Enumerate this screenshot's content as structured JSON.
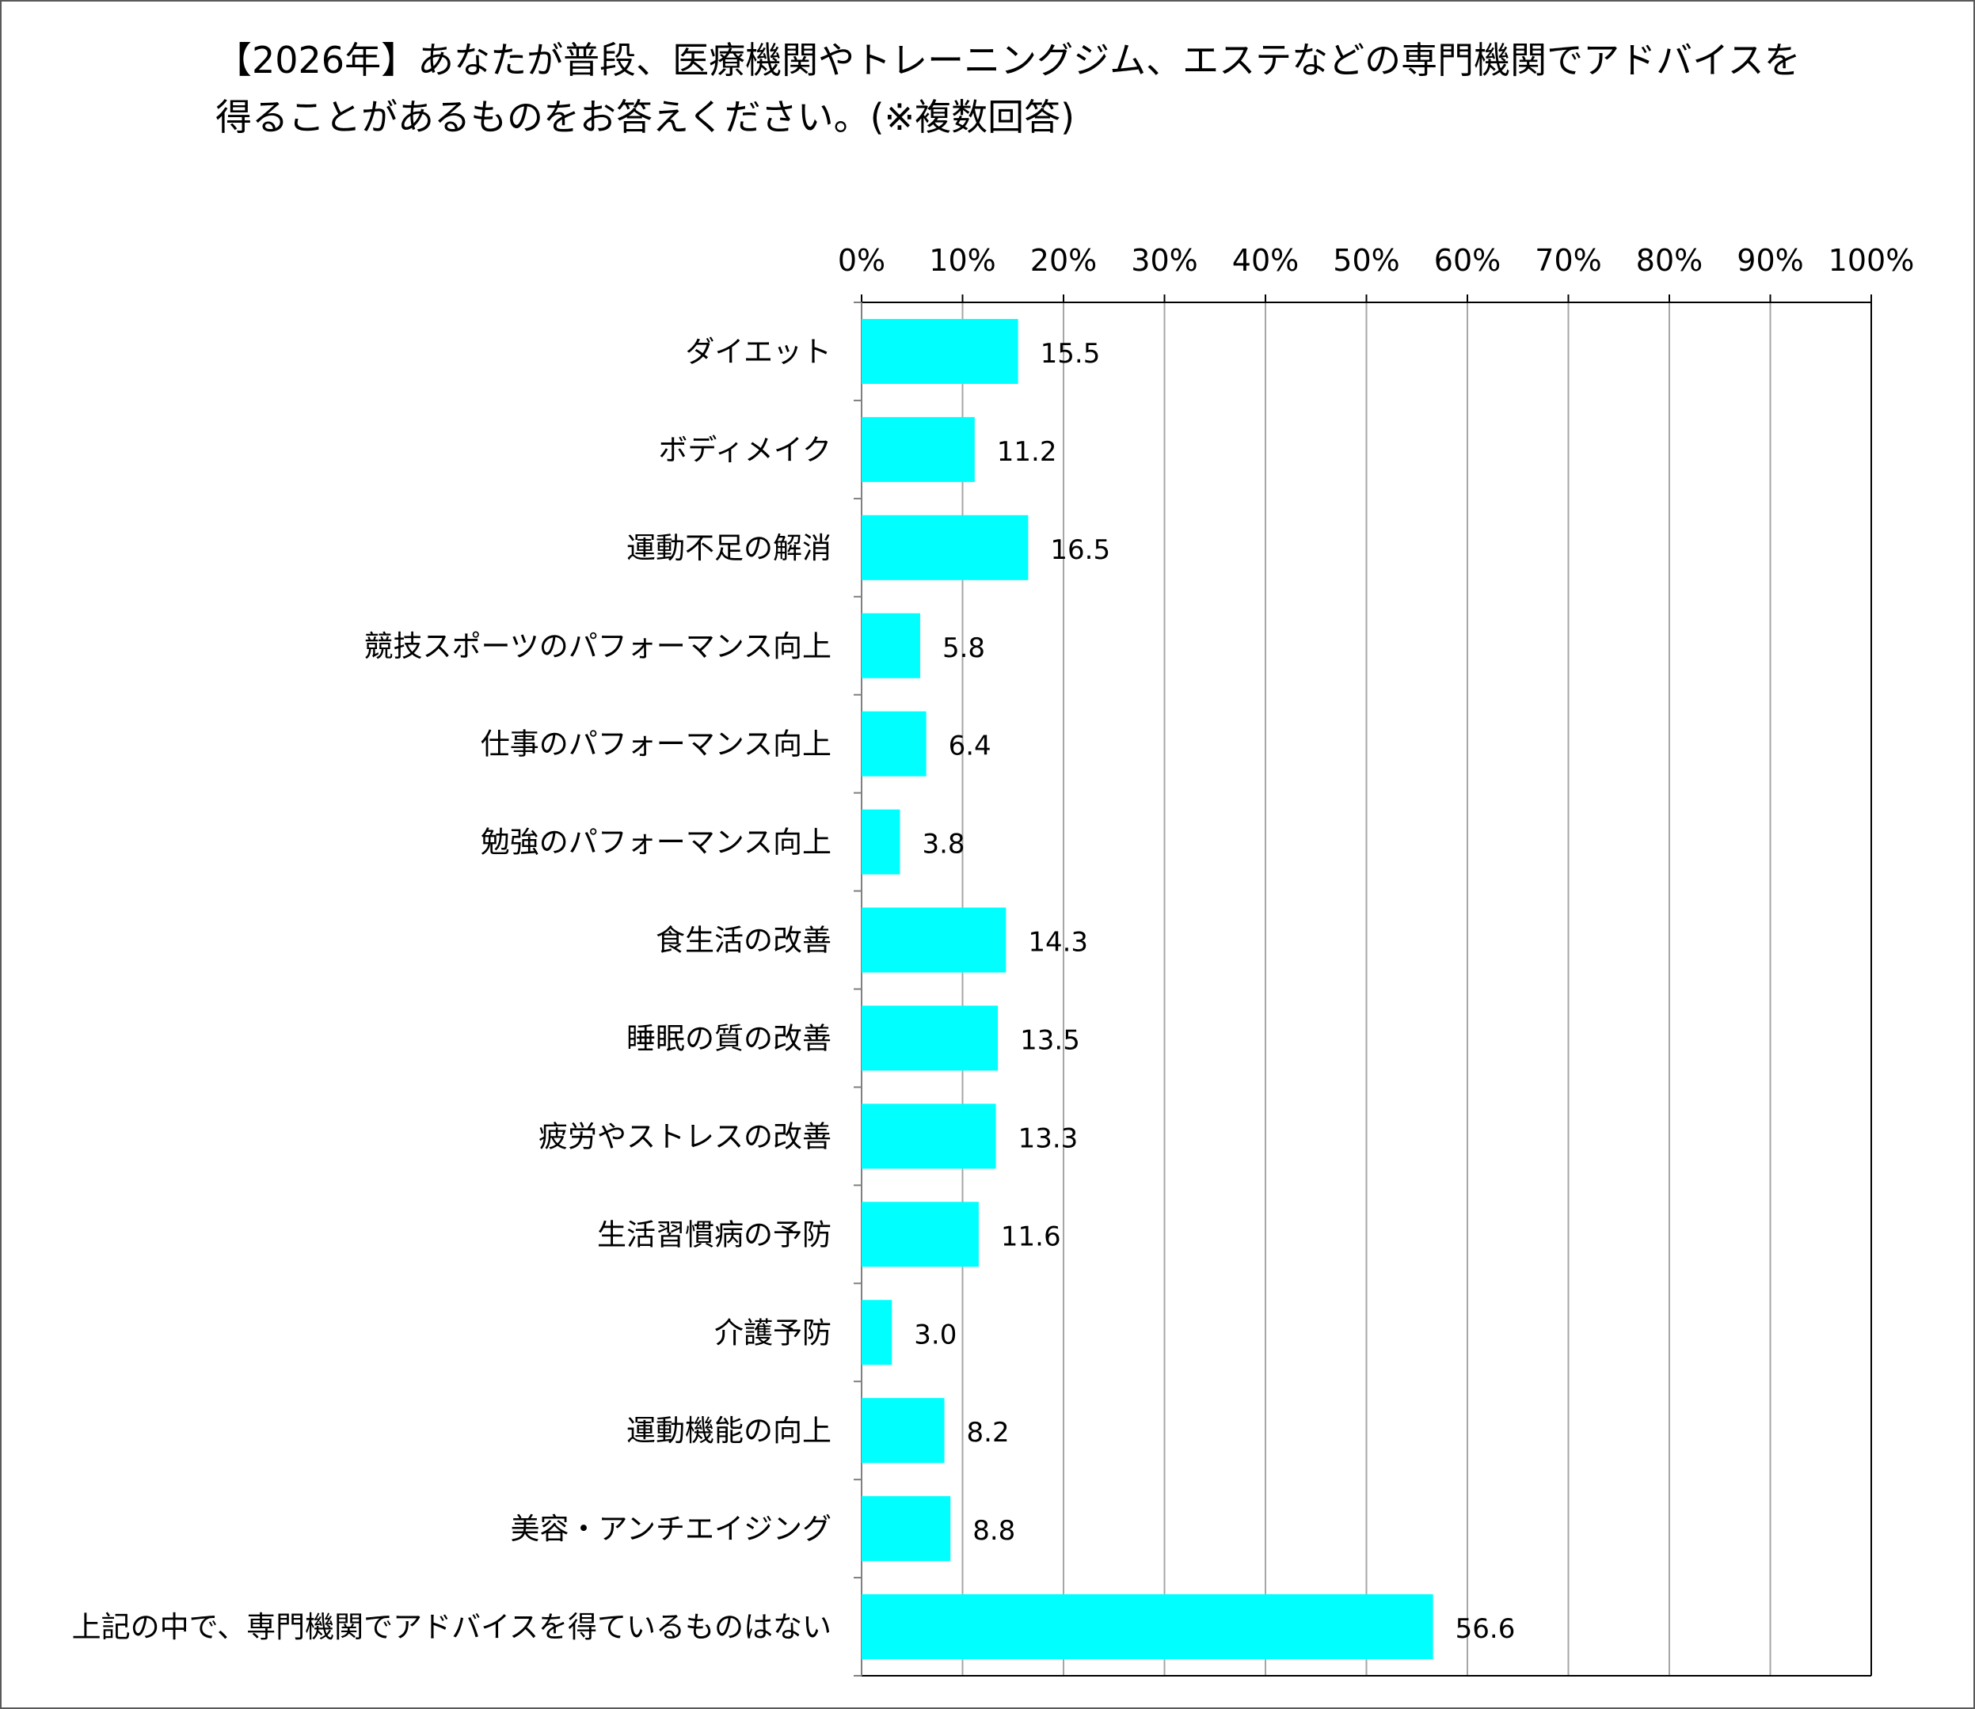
{
  "chart_data": {
    "type": "bar",
    "orientation": "horizontal",
    "title_lines": [
      "【2026年】あなたが普段、医療機関やトレーニングジム、エステなどの専門機関でアドバイスを",
      "得ることがあるものをお答えください。(※複数回答)"
    ],
    "categories": [
      "ダイエット",
      "ボディメイク",
      "運動不足の解消",
      "競技スポーツのパフォーマンス向上",
      "仕事のパフォーマンス向上",
      "勉強のパフォーマンス向上",
      "食生活の改善",
      "睡眠の質の改善",
      "疲労やストレスの改善",
      "生活習慣病の予防",
      "介護予防",
      "運動機能の向上",
      "美容・アンチエイジング",
      "上記の中で、専門機関でアドバイスを得ているものはない"
    ],
    "values": [
      15.5,
      11.2,
      16.5,
      5.8,
      6.4,
      3.8,
      14.3,
      13.5,
      13.3,
      11.6,
      3.0,
      8.2,
      8.8,
      56.6
    ],
    "value_labels": [
      "15.5",
      "11.2",
      "16.5",
      "5.8",
      "6.4",
      "3.8",
      "14.3",
      "13.5",
      "13.3",
      "11.6",
      "3.0",
      "8.2",
      "8.8",
      "56.6"
    ],
    "x_ticks": [
      0,
      10,
      20,
      30,
      40,
      50,
      60,
      70,
      80,
      90,
      100
    ],
    "x_tick_labels": [
      "0%",
      "10%",
      "20%",
      "30%",
      "40%",
      "50%",
      "60%",
      "70%",
      "80%",
      "90%",
      "100%"
    ],
    "xlim": [
      0,
      100
    ],
    "xlabel": "",
    "ylabel": "",
    "grid": true,
    "axis_position": "top",
    "bar_color": "#00FFFF",
    "grid_color": "#A6A6A6",
    "axis_color": "#000000"
  }
}
